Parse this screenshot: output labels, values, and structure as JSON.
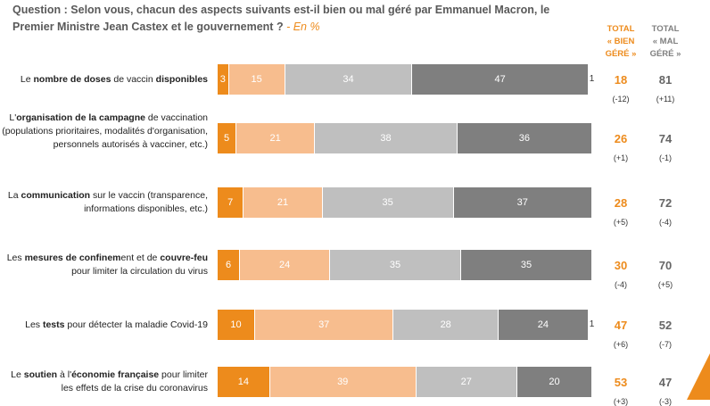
{
  "question": {
    "text": "Question : Selon vous, chacun des aspects suivants est-il bien ou mal géré par Emmanuel Macron, le Premier Ministre Jean Castex et le gouvernement ?",
    "unit": "- En %"
  },
  "headers": {
    "bien": [
      "TOTAL",
      "« BIEN",
      "GÉRÉ »"
    ],
    "mal": [
      "TOTAL",
      "« MAL",
      "GÉRÉ »"
    ]
  },
  "colors": {
    "tres_bien": "#ED8B1C",
    "plutot_bien": "#F7BD8E",
    "plutot_mal": "#BFBFBF",
    "tres_mal": "#7F7F7F",
    "accent": "#ED8B1C"
  },
  "chart_data": {
    "type": "bar",
    "orientation": "horizontal",
    "stacked": true,
    "xlim": [
      0,
      100
    ],
    "series_keys": [
      "tres_bien",
      "plutot_bien",
      "plutot_mal",
      "tres_mal"
    ],
    "rows": [
      {
        "label_parts": [
          [
            "Le ",
            false
          ],
          [
            "nombre de doses",
            true
          ],
          [
            " de vaccin ",
            false
          ],
          [
            "disponibles",
            true
          ]
        ],
        "values": [
          3,
          15,
          34,
          47
        ],
        "nsp": "1",
        "total_bien": "18",
        "total_mal": "81",
        "delta_bien": "(-12)",
        "delta_mal": "(+11)"
      },
      {
        "label_parts": [
          [
            "L'",
            false
          ],
          [
            "organisation de la campagne",
            true
          ],
          [
            " de vaccination (populations prioritaires, modalités d'organisation, personnels autorisés à vacciner, etc.)",
            false
          ]
        ],
        "values": [
          5,
          21,
          38,
          36
        ],
        "nsp": "",
        "total_bien": "26",
        "total_mal": "74",
        "delta_bien": "(+1)",
        "delta_mal": "(-1)"
      },
      {
        "label_parts": [
          [
            "La ",
            false
          ],
          [
            "communication",
            true
          ],
          [
            " sur le vaccin (transparence, informations disponibles, etc.)",
            false
          ]
        ],
        "values": [
          7,
          21,
          35,
          37
        ],
        "nsp": "",
        "total_bien": "28",
        "total_mal": "72",
        "delta_bien": "(+5)",
        "delta_mal": "(-4)"
      },
      {
        "label_parts": [
          [
            "Les ",
            false
          ],
          [
            "mesures de confinem",
            true
          ],
          [
            "ent et de ",
            false
          ],
          [
            "couvre-feu",
            true
          ],
          [
            " pour limiter la circulation du virus",
            false
          ]
        ],
        "values": [
          6,
          24,
          35,
          35
        ],
        "nsp": "",
        "total_bien": "30",
        "total_mal": "70",
        "delta_bien": "(-4)",
        "delta_mal": "(+5)"
      },
      {
        "label_parts": [
          [
            "Les ",
            false
          ],
          [
            "tests",
            true
          ],
          [
            " pour détecter la maladie Covid-19",
            false
          ]
        ],
        "values": [
          10,
          37,
          28,
          24
        ],
        "nsp": "1",
        "total_bien": "47",
        "total_mal": "52",
        "delta_bien": "(+6)",
        "delta_mal": "(-7)"
      },
      {
        "label_parts": [
          [
            "Le ",
            false
          ],
          [
            "soutien",
            true
          ],
          [
            " à l'",
            false
          ],
          [
            "économie française",
            true
          ],
          [
            " pour limiter les effets de la crise du coronavirus",
            false
          ]
        ],
        "values": [
          14,
          39,
          27,
          20
        ],
        "nsp": "",
        "total_bien": "53",
        "total_mal": "47",
        "delta_bien": "(+3)",
        "delta_mal": "(-3)"
      }
    ]
  }
}
